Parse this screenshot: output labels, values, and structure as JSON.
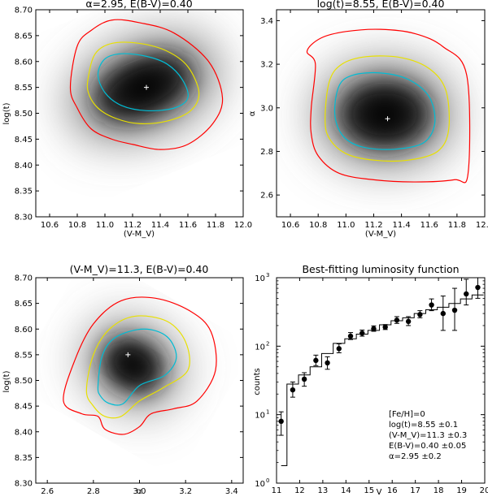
{
  "figure": {
    "description_free": true
  },
  "chart_data": [
    {
      "type": "heatmap",
      "title": "α=2.95, E(B-V)=0.40",
      "xlabel": "(V-M_V)",
      "ylabel": "log(t)",
      "xlim": [
        10.5,
        12.0
      ],
      "ylim": [
        8.3,
        8.7
      ],
      "xticks": [
        "10.6",
        "10.8",
        "11.0",
        "11.2",
        "11.4",
        "11.6",
        "11.8",
        "12.0"
      ],
      "xtick_values": [
        10.6,
        10.8,
        11.0,
        11.2,
        11.4,
        11.6,
        11.8,
        12.0
      ],
      "yticks": [
        "8.30",
        "8.35",
        "8.40",
        "8.45",
        "8.50",
        "8.55",
        "8.60",
        "8.65",
        "8.70"
      ],
      "ytick_values": [
        8.3,
        8.35,
        8.4,
        8.45,
        8.5,
        8.55,
        8.6,
        8.65,
        8.7
      ],
      "best_fit": {
        "x": 11.3,
        "y": 8.55
      },
      "contours": [
        {
          "color": "#ff0000",
          "points": [
            [
              10.75,
              8.55
            ],
            [
              10.8,
              8.63
            ],
            [
              10.9,
              8.66
            ],
            [
              11.05,
              8.68
            ],
            [
              11.25,
              8.675
            ],
            [
              11.5,
              8.655
            ],
            [
              11.75,
              8.6
            ],
            [
              11.85,
              8.53
            ],
            [
              11.78,
              8.48
            ],
            [
              11.6,
              8.44
            ],
            [
              11.4,
              8.43
            ],
            [
              11.2,
              8.44
            ],
            [
              11.05,
              8.45
            ],
            [
              10.9,
              8.47
            ],
            [
              10.8,
              8.51
            ]
          ]
        },
        {
          "color": "#e8e000",
          "points": [
            [
              10.88,
              8.57
            ],
            [
              10.93,
              8.615
            ],
            [
              11.05,
              8.635
            ],
            [
              11.25,
              8.635
            ],
            [
              11.45,
              8.62
            ],
            [
              11.6,
              8.59
            ],
            [
              11.68,
              8.54
            ],
            [
              11.62,
              8.505
            ],
            [
              11.45,
              8.485
            ],
            [
              11.25,
              8.48
            ],
            [
              11.08,
              8.49
            ],
            [
              10.95,
              8.51
            ],
            [
              10.88,
              8.54
            ]
          ]
        },
        {
          "color": "#00bcd4",
          "points": [
            [
              10.95,
              8.575
            ],
            [
              11.0,
              8.605
            ],
            [
              11.12,
              8.615
            ],
            [
              11.3,
              8.61
            ],
            [
              11.45,
              8.595
            ],
            [
              11.56,
              8.565
            ],
            [
              11.6,
              8.53
            ],
            [
              11.5,
              8.51
            ],
            [
              11.3,
              8.505
            ],
            [
              11.12,
              8.515
            ],
            [
              11.0,
              8.54
            ]
          ]
        }
      ],
      "density": {
        "cx": 11.28,
        "cy": 8.55,
        "sx": 0.48,
        "sy": 0.075,
        "rot": -22
      }
    },
    {
      "type": "heatmap",
      "title": "log(t)=8.55, E(B-V)=0.40",
      "xlabel": "(V-M_V)",
      "ylabel": "α",
      "xlim": [
        10.5,
        12.0
      ],
      "ylim": [
        2.5,
        3.45
      ],
      "xticks": [
        "10.6",
        "10.8",
        "11.0",
        "11.2",
        "11.4",
        "11.6",
        "11.8",
        "12.0"
      ],
      "xtick_values": [
        10.6,
        10.8,
        11.0,
        11.2,
        11.4,
        11.6,
        11.8,
        12.0
      ],
      "yticks": [
        "2.6",
        "2.8",
        "3.0",
        "3.2",
        "3.4"
      ],
      "ytick_values": [
        2.6,
        2.8,
        3.0,
        3.2,
        3.4
      ],
      "best_fit": {
        "x": 11.3,
        "y": 2.95
      },
      "contours": [
        {
          "color": "#ff0000",
          "points": [
            [
              10.75,
              3.0
            ],
            [
              10.78,
              3.2
            ],
            [
              10.72,
              3.26
            ],
            [
              10.82,
              3.32
            ],
            [
              11.0,
              3.35
            ],
            [
              11.25,
              3.36
            ],
            [
              11.5,
              3.34
            ],
            [
              11.7,
              3.28
            ],
            [
              11.87,
              3.15
            ],
            [
              11.88,
              2.7
            ],
            [
              11.78,
              2.67
            ],
            [
              11.5,
              2.66
            ],
            [
              11.2,
              2.67
            ],
            [
              10.95,
              2.7
            ],
            [
              10.8,
              2.78
            ],
            [
              10.75,
              2.88
            ]
          ]
        },
        {
          "color": "#e8e000",
          "points": [
            [
              10.85,
              2.95
            ],
            [
              10.88,
              3.12
            ],
            [
              10.97,
              3.2
            ],
            [
              11.15,
              3.235
            ],
            [
              11.4,
              3.23
            ],
            [
              11.6,
              3.18
            ],
            [
              11.72,
              3.08
            ],
            [
              11.74,
              2.9
            ],
            [
              11.66,
              2.8
            ],
            [
              11.45,
              2.76
            ],
            [
              11.2,
              2.76
            ],
            [
              11.0,
              2.79
            ],
            [
              10.88,
              2.86
            ]
          ]
        },
        {
          "color": "#00bcd4",
          "points": [
            [
              10.92,
              2.97
            ],
            [
              10.95,
              3.1
            ],
            [
              11.05,
              3.15
            ],
            [
              11.25,
              3.16
            ],
            [
              11.45,
              3.13
            ],
            [
              11.6,
              3.05
            ],
            [
              11.64,
              2.93
            ],
            [
              11.56,
              2.84
            ],
            [
              11.35,
              2.81
            ],
            [
              11.12,
              2.82
            ],
            [
              10.98,
              2.87
            ]
          ]
        }
      ],
      "density": {
        "cx": 11.28,
        "cy": 2.97,
        "sx": 0.42,
        "sy": 0.2,
        "rot": 0
      }
    },
    {
      "type": "heatmap",
      "title": "(V-M_V)=11.3, E(B-V)=0.40",
      "xlabel": "α",
      "ylabel": "log(t)",
      "xlim": [
        2.55,
        3.45
      ],
      "ylim": [
        8.3,
        8.7
      ],
      "xticks": [
        "2.6",
        "2.8",
        "3.0",
        "3.2",
        "3.4"
      ],
      "xtick_values": [
        2.6,
        2.8,
        3.0,
        3.2,
        3.4
      ],
      "yticks": [
        "8.30",
        "8.35",
        "8.40",
        "8.45",
        "8.50",
        "8.55",
        "8.60",
        "8.65",
        "8.70"
      ],
      "ytick_values": [
        8.3,
        8.35,
        8.4,
        8.45,
        8.5,
        8.55,
        8.6,
        8.65,
        8.7
      ],
      "best_fit": {
        "x": 2.95,
        "y": 8.55
      },
      "contours": [
        {
          "color": "#ff0000",
          "points": [
            [
              2.67,
              8.46
            ],
            [
              2.72,
              8.54
            ],
            [
              2.8,
              8.61
            ],
            [
              2.92,
              8.655
            ],
            [
              3.07,
              8.66
            ],
            [
              3.22,
              8.635
            ],
            [
              3.31,
              8.595
            ],
            [
              3.33,
              8.52
            ],
            [
              3.25,
              8.46
            ],
            [
              3.15,
              8.445
            ],
            [
              3.05,
              8.435
            ],
            [
              3.0,
              8.41
            ],
            [
              2.93,
              8.395
            ],
            [
              2.85,
              8.405
            ],
            [
              2.82,
              8.43
            ],
            [
              2.75,
              8.435
            ]
          ]
        },
        {
          "color": "#e8e000",
          "points": [
            [
              2.77,
              8.48
            ],
            [
              2.8,
              8.55
            ],
            [
              2.87,
              8.6
            ],
            [
              2.98,
              8.625
            ],
            [
              3.12,
              8.615
            ],
            [
              3.2,
              8.575
            ],
            [
              3.21,
              8.52
            ],
            [
              3.1,
              8.485
            ],
            [
              3.0,
              8.46
            ],
            [
              2.92,
              8.43
            ],
            [
              2.85,
              8.43
            ],
            [
              2.8,
              8.45
            ]
          ]
        },
        {
          "color": "#00bcd4",
          "points": [
            [
              2.82,
              8.49
            ],
            [
              2.84,
              8.55
            ],
            [
              2.9,
              8.585
            ],
            [
              3.02,
              8.6
            ],
            [
              3.12,
              8.585
            ],
            [
              3.16,
              8.545
            ],
            [
              3.11,
              8.51
            ],
            [
              3.0,
              8.49
            ],
            [
              2.93,
              8.455
            ],
            [
              2.87,
              8.455
            ],
            [
              2.83,
              8.47
            ]
          ]
        }
      ],
      "density": {
        "cx": 2.97,
        "cy": 8.53,
        "sx": 0.18,
        "sy": 0.065,
        "rot": 30
      }
    },
    {
      "type": "scatter",
      "title": "Best-fitting luminosity function",
      "xlabel": "V",
      "ylabel": "counts",
      "xlim": [
        11,
        20
      ],
      "ylim_log10": [
        0,
        3
      ],
      "xticks": [
        "11",
        "12",
        "13",
        "14",
        "15",
        "16",
        "17",
        "18",
        "19",
        "20"
      ],
      "xtick_values": [
        11,
        12,
        13,
        14,
        15,
        16,
        17,
        18,
        19,
        20
      ],
      "yticks_exp": [
        "0",
        "1",
        "2",
        "3"
      ],
      "ytick_log_values": [
        0,
        1,
        2,
        3
      ],
      "points": {
        "x": [
          11.2,
          11.7,
          12.2,
          12.7,
          13.2,
          13.7,
          14.2,
          14.7,
          15.2,
          15.7,
          16.2,
          16.7,
          17.2,
          17.7,
          18.2,
          18.7,
          19.2,
          19.7
        ],
        "y": [
          8,
          23,
          33,
          62,
          57,
          92,
          140,
          155,
          180,
          190,
          240,
          230,
          290,
          400,
          300,
          335,
          580,
          720
        ],
        "yerr_low": [
          5,
          18,
          26,
          52,
          46,
          80,
          125,
          140,
          165,
          175,
          215,
          200,
          260,
          330,
          170,
          170,
          400,
          500
        ],
        "yerr_high": [
          11,
          30,
          41,
          74,
          70,
          108,
          158,
          172,
          198,
          207,
          270,
          270,
          330,
          490,
          540,
          700,
          950,
          1000
        ]
      },
      "model_step": {
        "edges": [
          11.2,
          11.45,
          11.95,
          12.45,
          12.95,
          13.45,
          13.95,
          14.45,
          14.95,
          15.45,
          15.95,
          16.45,
          16.95,
          17.45,
          17.95,
          18.45,
          18.95,
          19.45,
          19.95
        ],
        "values": [
          1.8,
          28,
          38,
          50,
          78,
          110,
          128,
          150,
          170,
          205,
          235,
          260,
          300,
          340,
          370,
          420,
          490,
          560
        ]
      },
      "annotation": [
        "[Fe/H]=0",
        "log(t)=8.55 ±0.1",
        "(V-M_V)=11.3 ±0.3",
        "E(B-V)=0.40 ±0.05",
        "α=2.95 ±0.2"
      ]
    }
  ]
}
